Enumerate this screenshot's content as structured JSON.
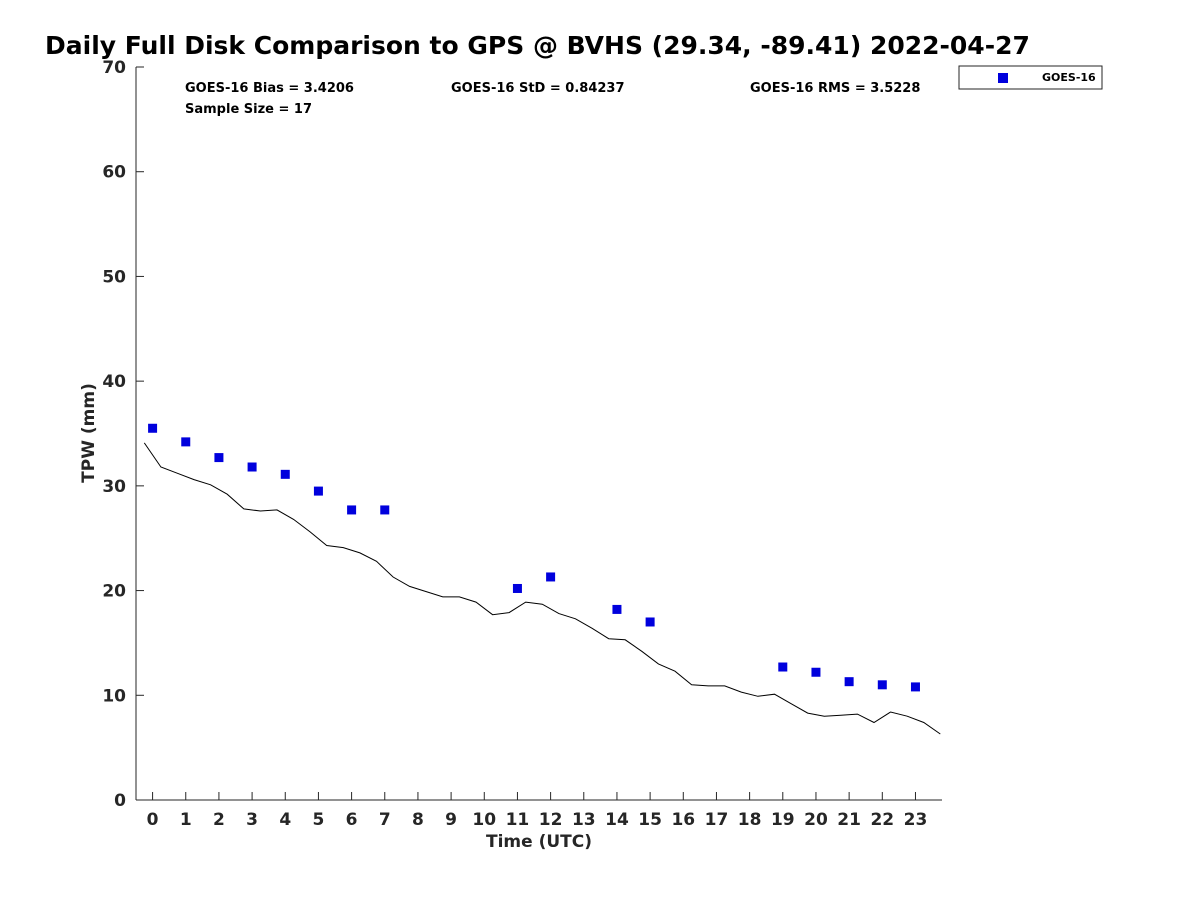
{
  "chart_data": {
    "type": "scatter",
    "title": "Daily Full Disk Comparison to GPS @ BVHS (29.34, -89.41) 2022-04-27",
    "xlabel": "Time (UTC)",
    "ylabel": "TPW (mm)",
    "xlim": [
      -0.5,
      23.8
    ],
    "ylim": [
      0,
      70
    ],
    "x_ticks": [
      "0",
      "1",
      "2",
      "3",
      "4",
      "5",
      "6",
      "7",
      "8",
      "9",
      "10",
      "11",
      "12",
      "13",
      "14",
      "15",
      "16",
      "17",
      "18",
      "19",
      "20",
      "21",
      "22",
      "23"
    ],
    "y_ticks": [
      "0",
      "10",
      "20",
      "30",
      "40",
      "50",
      "60",
      "70"
    ],
    "grid": false,
    "legend_position": "top-right",
    "stats": {
      "bias": "GOES-16 Bias = 3.4206",
      "std": "GOES-16 StD = 0.84237",
      "rms": "GOES-16 RMS = 3.5228",
      "sample_size": "Sample Size = 17"
    },
    "series": [
      {
        "name": "GOES-16",
        "kind": "scatter",
        "color": "#0000dd",
        "marker": "square",
        "x": [
          0,
          1,
          2,
          3,
          4,
          5,
          6,
          7,
          11,
          12,
          14,
          15,
          19,
          20,
          21,
          22,
          23
        ],
        "y": [
          35.5,
          34.2,
          32.7,
          31.8,
          31.1,
          29.5,
          27.7,
          27.7,
          20.2,
          21.3,
          18.2,
          17.0,
          12.7,
          12.2,
          11.3,
          11.0,
          10.8
        ]
      },
      {
        "kind": "line",
        "color": "#000000",
        "x": [
          -0.25,
          0.25,
          0.75,
          1.25,
          1.75,
          2.25,
          2.75,
          3.25,
          3.75,
          4.25,
          4.75,
          5.25,
          5.75,
          6.25,
          6.75,
          7.25,
          7.75,
          8.25,
          8.75,
          9.25,
          9.75,
          10.25,
          10.75,
          11.25,
          11.75,
          12.25,
          12.75,
          13.25,
          13.75,
          14.25,
          14.75,
          15.25,
          15.75,
          16.25,
          16.75,
          17.25,
          17.75,
          18.25,
          18.75,
          19.25,
          19.75,
          20.25,
          20.75,
          21.25,
          21.75,
          22.25,
          22.75,
          23.25,
          23.75
        ],
        "y": [
          34.1,
          31.8,
          31.2,
          30.6,
          30.1,
          29.2,
          27.8,
          27.6,
          27.7,
          26.8,
          25.6,
          24.3,
          24.1,
          23.6,
          22.8,
          21.3,
          20.4,
          19.9,
          19.4,
          19.4,
          18.9,
          17.7,
          17.9,
          18.9,
          18.7,
          17.8,
          17.3,
          16.4,
          15.4,
          15.3,
          14.2,
          13.0,
          12.3,
          11.0,
          10.9,
          10.9,
          10.3,
          9.9,
          10.1,
          9.2,
          8.3,
          8.0,
          8.1,
          8.2,
          7.4,
          8.4,
          8.0,
          7.4,
          6.3
        ]
      }
    ]
  }
}
